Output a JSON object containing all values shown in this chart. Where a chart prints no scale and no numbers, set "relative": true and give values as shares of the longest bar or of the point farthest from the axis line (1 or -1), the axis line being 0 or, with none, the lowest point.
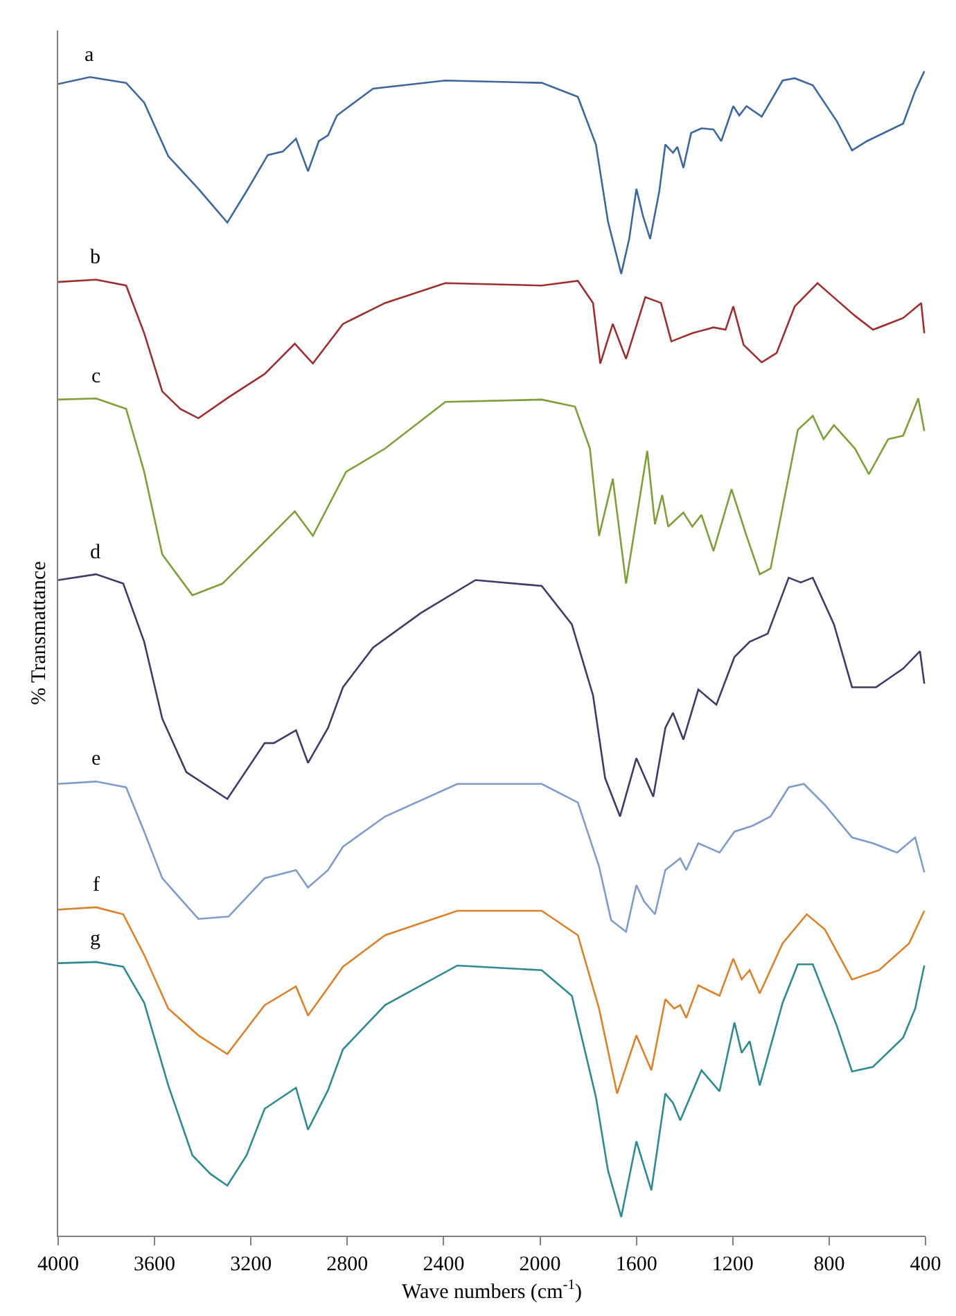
{
  "chart_data": {
    "type": "line",
    "relative": true,
    "xlabel": "Wave numbers (cm$^{-1}$)",
    "ylabel": "% Transmattance",
    "xlim": [
      4000,
      400
    ],
    "xticks": [
      4000,
      3600,
      3200,
      2800,
      2400,
      2000,
      1600,
      1200,
      800,
      400
    ],
    "grid": false,
    "legend": false,
    "marker": "none",
    "line_style": "solid",
    "series": [
      {
        "name": "a",
        "color": "#3d679c",
        "x": [
          4000,
          3868,
          3718,
          3643,
          3543,
          3418,
          3298,
          3218,
          3130,
          3068,
          3013,
          2963,
          2918,
          2880,
          2843,
          2693,
          2393,
          1993,
          1843,
          1768,
          1718,
          1663,
          1630,
          1600,
          1573,
          1543,
          1505,
          1480,
          1448,
          1430,
          1405,
          1373,
          1330,
          1280,
          1248,
          1198,
          1173,
          1143,
          1080,
          993,
          943,
          868,
          768,
          705,
          643,
          493,
          443,
          405
        ],
        "values": [
          0.989,
          0.995,
          0.99,
          0.973,
          0.927,
          0.899,
          0.87,
          0.897,
          0.928,
          0.931,
          0.942,
          0.914,
          0.94,
          0.945,
          0.962,
          0.985,
          0.992,
          0.99,
          0.978,
          0.937,
          0.871,
          0.826,
          0.856,
          0.899,
          0.876,
          0.856,
          0.897,
          0.937,
          0.93,
          0.935,
          0.917,
          0.947,
          0.951,
          0.95,
          0.94,
          0.97,
          0.962,
          0.97,
          0.961,
          0.992,
          0.994,
          0.988,
          0.957,
          0.932,
          0.94,
          0.955,
          0.983,
          1.0
        ]
      },
      {
        "name": "b",
        "color": "#9b2f30",
        "x": [
          4000,
          3843,
          3718,
          3643,
          3568,
          3493,
          3418,
          3293,
          3143,
          3018,
          2943,
          2818,
          2643,
          2393,
          1993,
          1843,
          1780,
          1750,
          1698,
          1643,
          1563,
          1498,
          1455,
          1368,
          1280,
          1230,
          1198,
          1155,
          1080,
          1018,
          943,
          848,
          793,
          693,
          618,
          493,
          418,
          405
        ],
        "values": [
          0.819,
          0.821,
          0.816,
          0.775,
          0.725,
          0.71,
          0.702,
          0.72,
          0.74,
          0.766,
          0.749,
          0.783,
          0.801,
          0.818,
          0.816,
          0.82,
          0.801,
          0.749,
          0.783,
          0.753,
          0.806,
          0.801,
          0.768,
          0.775,
          0.78,
          0.778,
          0.798,
          0.765,
          0.75,
          0.758,
          0.798,
          0.818,
          0.808,
          0.79,
          0.778,
          0.788,
          0.801,
          0.775
        ]
      },
      {
        "name": "c",
        "color": "#7f9e3b",
        "x": [
          4000,
          3843,
          3718,
          3643,
          3568,
          3443,
          3318,
          3143,
          3018,
          2943,
          2805,
          2643,
          2393,
          1993,
          1855,
          1793,
          1755,
          1698,
          1643,
          1555,
          1523,
          1493,
          1468,
          1405,
          1368,
          1330,
          1280,
          1205,
          1143,
          1088,
          1043,
          930,
          868,
          823,
          780,
          693,
          635,
          555,
          493,
          430,
          405
        ],
        "values": [
          0.718,
          0.719,
          0.71,
          0.656,
          0.585,
          0.55,
          0.56,
          0.596,
          0.622,
          0.601,
          0.656,
          0.676,
          0.716,
          0.718,
          0.712,
          0.676,
          0.601,
          0.65,
          0.56,
          0.674,
          0.611,
          0.636,
          0.609,
          0.621,
          0.609,
          0.619,
          0.588,
          0.641,
          0.601,
          0.568,
          0.573,
          0.692,
          0.704,
          0.684,
          0.696,
          0.676,
          0.654,
          0.684,
          0.687,
          0.719,
          0.691
        ]
      },
      {
        "name": "d",
        "color": "#3f3a66",
        "x": [
          4000,
          3843,
          3730,
          3643,
          3568,
          3468,
          3298,
          3143,
          3105,
          3013,
          2963,
          2880,
          2818,
          2693,
          2493,
          2268,
          1993,
          1868,
          1780,
          1730,
          1668,
          1600,
          1530,
          1480,
          1448,
          1405,
          1343,
          1268,
          1193,
          1130,
          1055,
          968,
          918,
          868,
          780,
          705,
          605,
          493,
          423,
          405
        ],
        "values": [
          0.563,
          0.568,
          0.56,
          0.51,
          0.444,
          0.398,
          0.375,
          0.423,
          0.423,
          0.434,
          0.406,
          0.436,
          0.471,
          0.505,
          0.535,
          0.563,
          0.558,
          0.525,
          0.464,
          0.393,
          0.36,
          0.41,
          0.377,
          0.436,
          0.449,
          0.426,
          0.469,
          0.456,
          0.497,
          0.51,
          0.517,
          0.565,
          0.561,
          0.565,
          0.525,
          0.471,
          0.471,
          0.487,
          0.502,
          0.474
        ]
      },
      {
        "name": "e",
        "color": "#7f9bc9",
        "x": [
          4000,
          3843,
          3718,
          3643,
          3568,
          3418,
          3293,
          3143,
          3013,
          2963,
          2880,
          2818,
          2643,
          2343,
          1993,
          1843,
          1755,
          1705,
          1643,
          1600,
          1568,
          1523,
          1480,
          1418,
          1393,
          1343,
          1255,
          1193,
          1118,
          1043,
          968,
          905,
          818,
          705,
          618,
          518,
          443,
          405
        ],
        "values": [
          0.388,
          0.39,
          0.385,
          0.347,
          0.307,
          0.272,
          0.274,
          0.307,
          0.314,
          0.299,
          0.314,
          0.334,
          0.36,
          0.388,
          0.388,
          0.372,
          0.317,
          0.271,
          0.261,
          0.301,
          0.287,
          0.276,
          0.314,
          0.324,
          0.314,
          0.337,
          0.329,
          0.347,
          0.352,
          0.36,
          0.385,
          0.388,
          0.37,
          0.342,
          0.337,
          0.329,
          0.342,
          0.312
        ]
      },
      {
        "name": "f",
        "color": "#d9822b",
        "x": [
          4000,
          3843,
          3730,
          3643,
          3543,
          3418,
          3298,
          3143,
          3013,
          2963,
          2880,
          2818,
          2643,
          2343,
          1993,
          1843,
          1755,
          1680,
          1600,
          1538,
          1480,
          1443,
          1418,
          1393,
          1343,
          1255,
          1198,
          1163,
          1130,
          1088,
          993,
          893,
          818,
          705,
          593,
          468,
          405
        ],
        "values": [
          0.28,
          0.282,
          0.276,
          0.241,
          0.195,
          0.172,
          0.156,
          0.198,
          0.214,
          0.189,
          0.213,
          0.231,
          0.258,
          0.279,
          0.279,
          0.258,
          0.195,
          0.122,
          0.172,
          0.142,
          0.203,
          0.195,
          0.198,
          0.187,
          0.215,
          0.206,
          0.238,
          0.22,
          0.228,
          0.208,
          0.251,
          0.276,
          0.263,
          0.22,
          0.228,
          0.251,
          0.279
        ]
      },
      {
        "name": "g",
        "color": "#2e8a90",
        "x": [
          4000,
          3843,
          3730,
          3643,
          3543,
          3443,
          3368,
          3298,
          3218,
          3143,
          3013,
          2963,
          2880,
          2818,
          2643,
          2343,
          1993,
          1868,
          1768,
          1718,
          1663,
          1600,
          1538,
          1480,
          1448,
          1418,
          1330,
          1255,
          1193,
          1163,
          1130,
          1088,
          993,
          930,
          868,
          768,
          705,
          618,
          493,
          443,
          405
        ],
        "values": [
          0.234,
          0.235,
          0.231,
          0.2,
          0.129,
          0.069,
          0.053,
          0.043,
          0.069,
          0.109,
          0.127,
          0.091,
          0.125,
          0.16,
          0.198,
          0.232,
          0.228,
          0.206,
          0.119,
          0.056,
          0.016,
          0.081,
          0.039,
          0.122,
          0.114,
          0.099,
          0.142,
          0.124,
          0.183,
          0.157,
          0.167,
          0.129,
          0.2,
          0.233,
          0.233,
          0.18,
          0.141,
          0.145,
          0.17,
          0.195,
          0.232
        ]
      }
    ]
  }
}
